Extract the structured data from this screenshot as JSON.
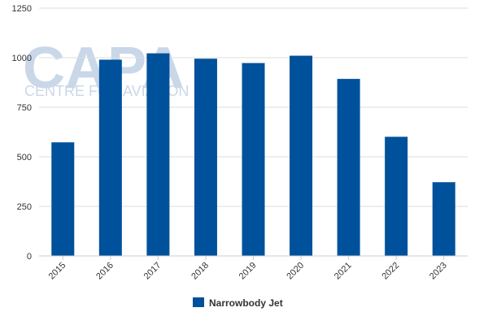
{
  "watermark": {
    "logo_text": "CAPA",
    "tagline": "CENTRE FOR AVIATION"
  },
  "chart_data": {
    "type": "bar",
    "title": "",
    "xlabel": "",
    "ylabel": "",
    "categories": [
      "2015",
      "2016",
      "2017",
      "2018",
      "2019",
      "2020",
      "2021",
      "2022",
      "2023"
    ],
    "series": [
      {
        "name": "Narrowbody Jet",
        "color": "#00519b",
        "values": [
          573,
          990,
          1022,
          995,
          973,
          1010,
          893,
          601,
          372
        ]
      }
    ],
    "y_ticks": [
      0,
      250,
      500,
      750,
      1000,
      1250
    ],
    "ylim": [
      0,
      1250
    ],
    "grid": true,
    "legend_position": "bottom-center"
  }
}
